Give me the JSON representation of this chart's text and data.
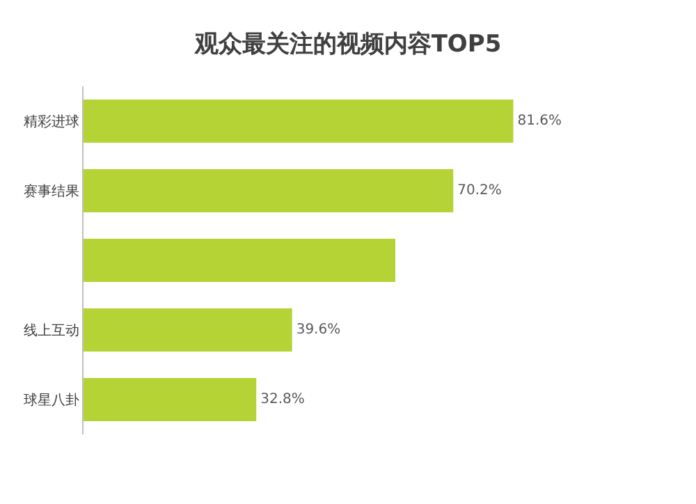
{
  "chart_data": {
    "type": "bar",
    "orientation": "horizontal",
    "title": "观众最关注的视频内容TOP5",
    "categories": [
      "精彩进球",
      "赛事结果",
      null,
      "线上互动",
      "球星八卦"
    ],
    "values": [
      81.6,
      70.2,
      59.2,
      39.6,
      32.8
    ],
    "value_labels": [
      "81.6%",
      "70.2%",
      null,
      "39.6%",
      "32.8%"
    ],
    "color": "#b5d334"
  }
}
